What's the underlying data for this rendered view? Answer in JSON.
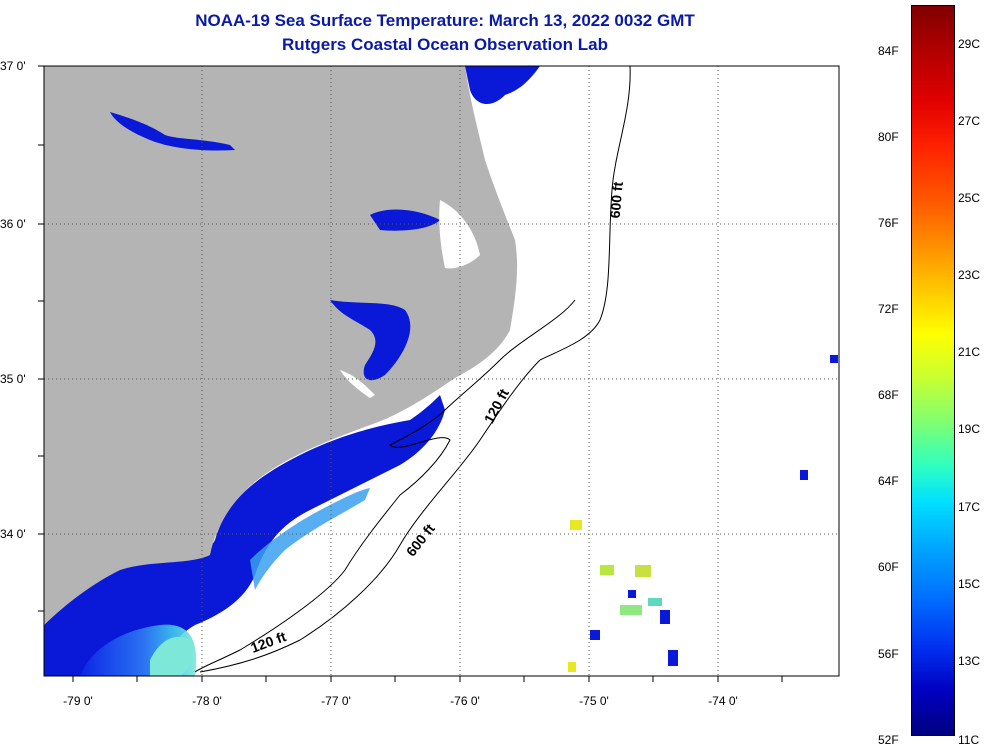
{
  "title": {
    "line1": "NOAA-19 Sea Surface Temperature:  March 13, 2022 0032 GMT",
    "line2": "Rutgers Coastal Ocean Observation Lab"
  },
  "map": {
    "latitude_labels": [
      "37 0'",
      "36 0'",
      "35 0'",
      "34 0'"
    ],
    "longitude_labels": [
      "-79 0'",
      "-78 0'",
      "-77 0'",
      "-76 0'",
      "-75 0'",
      "-74 0'"
    ],
    "contour_labels": [
      "600 ft",
      "120 ft",
      "600 ft",
      "120 ft"
    ],
    "colors": {
      "land": "#b4b4b4",
      "ocean_no_data": "#ffffff",
      "cold_water": "#0a18d8",
      "grid": "#555555"
    }
  },
  "colorbar": {
    "fahrenheit_labels": [
      "84F",
      "80F",
      "76F",
      "72F",
      "68F",
      "64F",
      "60F",
      "56F",
      "52F"
    ],
    "celsius_labels": [
      "29C",
      "27C",
      "25C",
      "23C",
      "21C",
      "19C",
      "17C",
      "15C",
      "13C",
      "11C"
    ],
    "range_c": [
      11,
      30
    ],
    "range_f": [
      52,
      86
    ]
  }
}
